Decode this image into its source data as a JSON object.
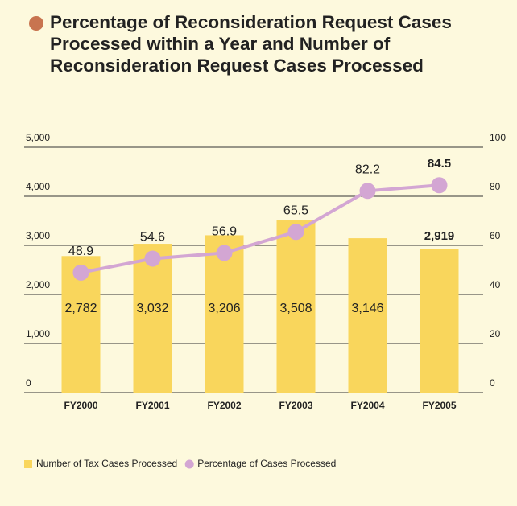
{
  "chart_data": {
    "type": "bar_line",
    "title": "Percentage of Reconsideration Request Cases Processed within a Year and Number of Reconsideration Request Cases Processed",
    "categories": [
      "FY2000",
      "FY2001",
      "FY2002",
      "FY2003",
      "FY2004",
      "FY2005"
    ],
    "series": [
      {
        "name": "Number of Tax Cases Processed",
        "type": "bar",
        "axis": "y",
        "color": "#f9d65c",
        "values": [
          2782,
          3032,
          3206,
          3508,
          3146,
          2919
        ],
        "value_labels": [
          "2,782",
          "3,032",
          "3,206",
          "3,508",
          "3,146",
          "2,919"
        ]
      },
      {
        "name": "Percentage of Cases Processed",
        "type": "line",
        "axis": "y2",
        "color": "#d3a6d3",
        "values": [
          48.9,
          54.6,
          56.9,
          65.5,
          82.2,
          84.5
        ]
      }
    ],
    "ylim": [
      0,
      5000
    ],
    "yticks": [
      0,
      {
        "value": 1000,
        "label": "1,000"
      },
      {
        "value": 2000,
        "label": "2,000"
      },
      {
        "value": 3000,
        "label": "3,000"
      },
      {
        "value": 4000,
        "label": "4,000"
      },
      {
        "value": 5000,
        "label": "5,000"
      }
    ],
    "y2lim": [
      0,
      100
    ],
    "y2ticks": [
      0,
      20,
      40,
      60,
      80,
      100
    ],
    "grid": true
  }
}
